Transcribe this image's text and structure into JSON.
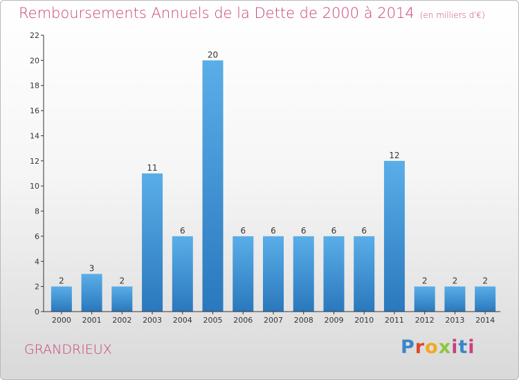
{
  "title": "Remboursements Annuels de la Dette de 2000 à 2014",
  "subtitle": "(en milliers d'€)",
  "commune": "GRANDRIEUX",
  "logo": {
    "text": "Proxiti",
    "colors": [
      "#3a86c8",
      "#e0452e",
      "#f4a81d",
      "#8cc63f",
      "#c8427a",
      "#3a86c8"
    ]
  },
  "colors": {
    "title": "#c8427a",
    "bar_top": "#5aaee8",
    "bar_bottom": "#2a78bd",
    "axis": "#333333"
  },
  "chart_data": {
    "type": "bar",
    "categories": [
      "2000",
      "2001",
      "2002",
      "2003",
      "2004",
      "2005",
      "2006",
      "2007",
      "2008",
      "2009",
      "2010",
      "2011",
      "2012",
      "2013",
      "2014"
    ],
    "values": [
      2,
      3,
      2,
      11,
      6,
      20,
      6,
      6,
      6,
      6,
      6,
      12,
      2,
      2,
      2
    ],
    "title": "Remboursements Annuels de la Dette de 2000 à 2014",
    "subtitle": "(en milliers d'€)",
    "xlabel": "",
    "ylabel": "",
    "ylim": [
      0,
      22
    ],
    "yticks": [
      0,
      2,
      4,
      6,
      8,
      10,
      12,
      14,
      16,
      18,
      20,
      22
    ],
    "grid": false,
    "legend": "none"
  }
}
